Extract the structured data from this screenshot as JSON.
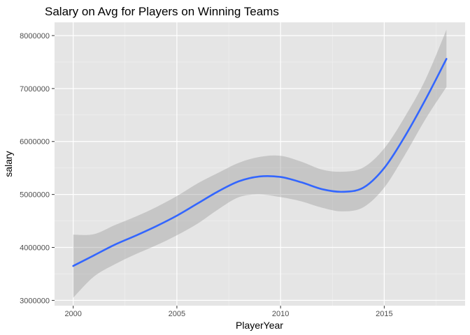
{
  "chart_data": {
    "type": "line",
    "title": "Salary on Avg for Players on Winning Teams",
    "xlabel": "PlayerYear",
    "ylabel": "salary",
    "xlim": [
      1999.1,
      2018.9
    ],
    "ylim": [
      2900000,
      8250000
    ],
    "x_ticks": [
      2000,
      2005,
      2010,
      2015
    ],
    "x_tick_labels": [
      "2000",
      "2005",
      "2010",
      "2015"
    ],
    "y_ticks": [
      3000000,
      4000000,
      5000000,
      6000000,
      7000000,
      8000000
    ],
    "y_tick_labels": [
      "3000000",
      "4000000",
      "5000000",
      "6000000",
      "7000000",
      "8000000"
    ],
    "grid": true,
    "series": [
      {
        "type": "smooth",
        "x": [
          2000,
          2001,
          2002,
          2003,
          2004,
          2005,
          2006,
          2007,
          2008,
          2009,
          2010,
          2011,
          2012,
          2013,
          2014,
          2015,
          2016,
          2017,
          2018
        ],
        "y": [
          3650000,
          3850000,
          4050000,
          4220000,
          4400000,
          4600000,
          4830000,
          5060000,
          5250000,
          5340000,
          5330000,
          5230000,
          5100000,
          5050000,
          5130000,
          5500000,
          6100000,
          6800000,
          7560000
        ],
        "lower": [
          3050000,
          3450000,
          3680000,
          3870000,
          4040000,
          4230000,
          4450000,
          4720000,
          4950000,
          5000000,
          4950000,
          4870000,
          4750000,
          4680000,
          4760000,
          5130000,
          5750000,
          6430000,
          7030000
        ],
        "upper": [
          4240000,
          4250000,
          4420000,
          4580000,
          4760000,
          4970000,
          5210000,
          5410000,
          5600000,
          5710000,
          5730000,
          5620000,
          5470000,
          5430000,
          5510000,
          5870000,
          6470000,
          7180000,
          8110000
        ]
      }
    ],
    "colors": {
      "panel": "#e5e5e5",
      "grid_major": "#ffffff",
      "line": "#3366ff",
      "ribbon": "#999999"
    }
  }
}
